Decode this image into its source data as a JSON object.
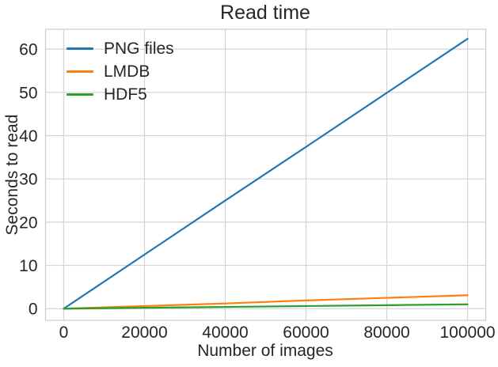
{
  "chart_data": {
    "type": "line",
    "title": "Read time",
    "xlabel": "Number of images",
    "ylabel": "Seconds to read",
    "x": [
      0,
      20000,
      40000,
      60000,
      80000,
      100000
    ],
    "series": [
      {
        "name": "PNG files",
        "color": "#1f77b4",
        "values": [
          0,
          12.5,
          25.0,
          37.4,
          49.9,
          62.4
        ]
      },
      {
        "name": "LMDB",
        "color": "#ff7f0e",
        "values": [
          0,
          0.6,
          1.2,
          1.9,
          2.5,
          3.1
        ]
      },
      {
        "name": "HDF5",
        "color": "#2ca02c",
        "values": [
          0,
          0.2,
          0.4,
          0.6,
          0.8,
          1.0
        ]
      }
    ],
    "xticks": [
      0,
      20000,
      40000,
      60000,
      80000,
      100000
    ],
    "xtick_labels": [
      "0",
      "20000",
      "40000",
      "60000",
      "80000",
      "100000"
    ],
    "yticks": [
      0,
      10,
      20,
      30,
      40,
      50,
      60
    ],
    "ytick_labels": [
      "0",
      "10",
      "20",
      "30",
      "40",
      "50",
      "60"
    ],
    "xlim": [
      -4500,
      104500
    ],
    "ylim": [
      -2.7,
      64.6
    ],
    "grid": true,
    "legend_position": "upper left",
    "colors": {
      "background": "#ffffff",
      "grid": "#d4d4d4",
      "frame": "#cccccc",
      "text": "#262626"
    }
  }
}
